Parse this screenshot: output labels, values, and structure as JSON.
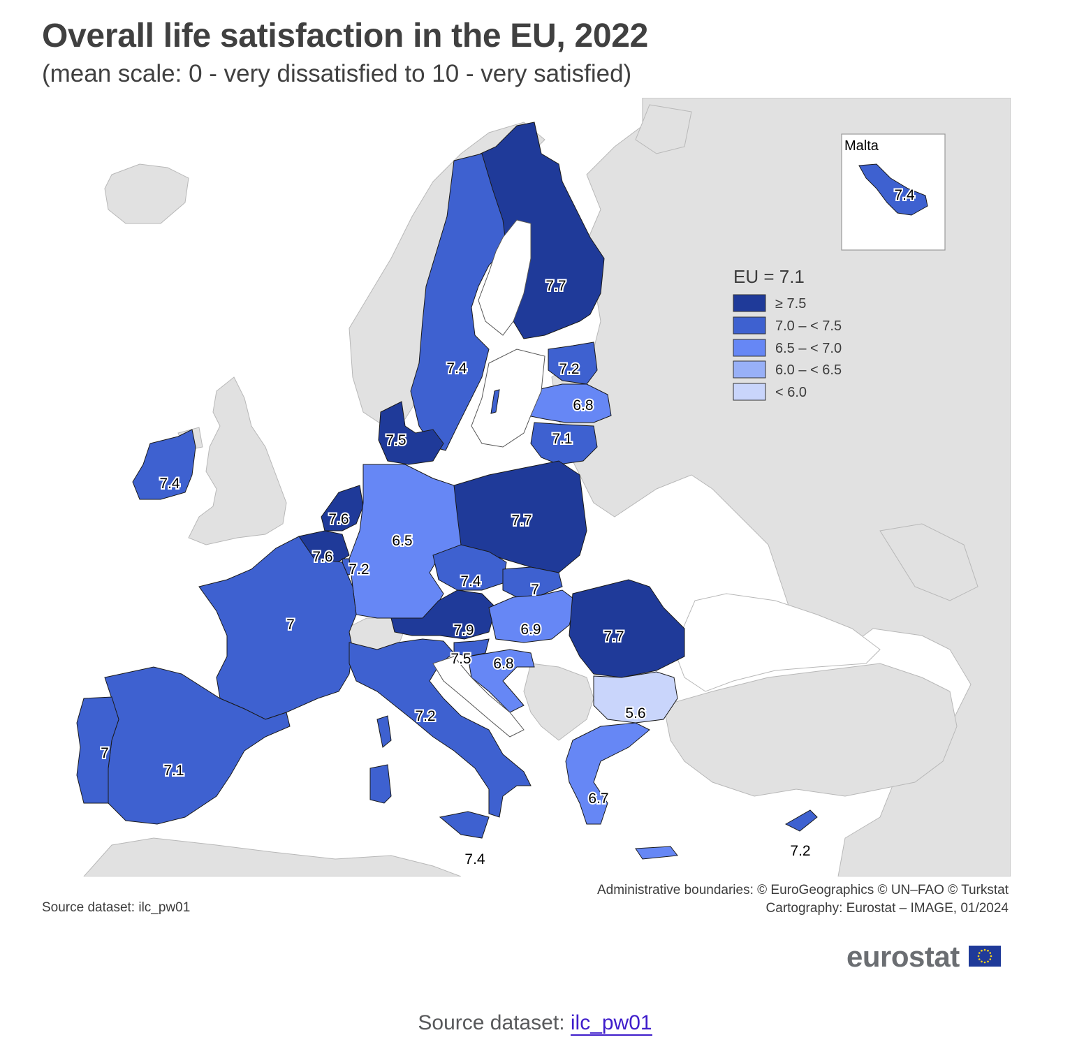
{
  "header": {
    "title": "Overall life satisfaction in the EU, 2022",
    "subtitle": "(mean scale: 0 - very dissatisfied to 10 - very satisfied)"
  },
  "legend": {
    "title": "EU = 7.1",
    "classes": [
      {
        "label": "≥ 7.5",
        "color": "#1f3a99"
      },
      {
        "label": "7.0 – < 7.5",
        "color": "#3e61d0"
      },
      {
        "label": "6.5 – < 7.0",
        "color": "#6687f5"
      },
      {
        "label": "6.0 – < 6.5",
        "color": "#98b0f7"
      },
      {
        "label": "< 6.0",
        "color": "#c9d5fb"
      }
    ]
  },
  "inset": {
    "title": "Malta",
    "value": "7.4"
  },
  "map_values": {
    "finland": "7.7",
    "sweden": "7.4",
    "estonia": "7.2",
    "latvia": "6.8",
    "lithuania": "7.1",
    "denmark": "7.5",
    "ireland": "7.4",
    "netherlands": "7.6",
    "belgium": "7.6",
    "luxembourg": "7.2",
    "germany": "6.5",
    "poland": "7.7",
    "czechia": "7.4",
    "slovakia": "7",
    "austria": "7.9",
    "hungary": "6.9",
    "romania": "7.7",
    "slovenia": "7.5",
    "croatia": "6.8",
    "bulgaria": "5.6",
    "france": "7",
    "italy": "7.2",
    "portugal": "7",
    "spain": "7.1",
    "greece": "6.7",
    "malta_sicily_label": "7.4",
    "cyprus": "7.2"
  },
  "colors": {
    "non_eu": "#e1e1e1",
    "sea": "#ffffff",
    "border": "#b8b8b8",
    "eu_border": "#1a1a1a"
  },
  "credits": {
    "line1": "Administrative boundaries: © EuroGeographics © UN–FAO © Turkstat",
    "line2": "Cartography: Eurostat – IMAGE, 01/2024"
  },
  "source_small": "Source dataset: ilc_pw01",
  "brand": "eurostat",
  "footer": {
    "prefix": "Source dataset: ",
    "link_text": "ilc_pw01"
  }
}
